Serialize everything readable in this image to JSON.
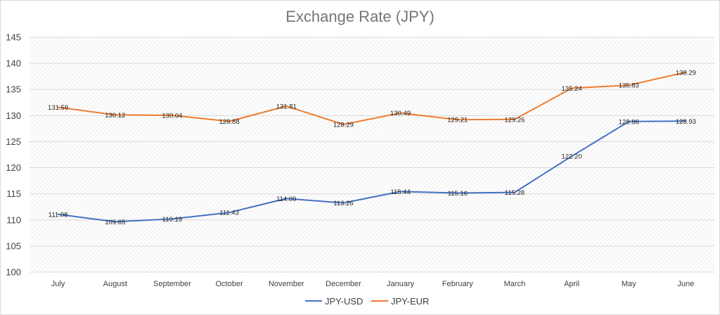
{
  "chart_data": {
    "type": "line",
    "title": "Exchange Rate (JPY)",
    "xlabel": "",
    "ylabel": "",
    "ylim": [
      100,
      145
    ],
    "yticks": [
      100,
      105,
      110,
      115,
      120,
      125,
      130,
      135,
      140,
      145
    ],
    "grid": true,
    "legend": "bottom",
    "categories": [
      "July",
      "August",
      "September",
      "October",
      "November",
      "December",
      "January",
      "February",
      "March",
      "April",
      "May",
      "June"
    ],
    "series": [
      {
        "name": "JPY-USD",
        "color": "#4472c4",
        "values": [
          111.08,
          109.65,
          110.19,
          111.43,
          114.09,
          113.26,
          115.44,
          115.16,
          115.28,
          122.2,
          128.86,
          128.93
        ],
        "labels": [
          "111.08",
          "109.65",
          "110.19",
          "111.43",
          "114.09",
          "113.26",
          "115.44",
          "115.16",
          "115.28",
          "122.20",
          "128.86",
          "128.93"
        ]
      },
      {
        "name": "JPY-EUR",
        "color": "#ed7d31",
        "values": [
          131.59,
          130.12,
          130.04,
          128.88,
          131.81,
          128.29,
          130.49,
          129.21,
          129.26,
          135.24,
          135.83,
          138.29
        ],
        "labels": [
          "131.59",
          "130.12",
          "130.04",
          "128.88",
          "131.81",
          "128.29",
          "130.49",
          "129.21",
          "129.26",
          "135.24",
          "135.83",
          "138.29"
        ]
      }
    ]
  }
}
